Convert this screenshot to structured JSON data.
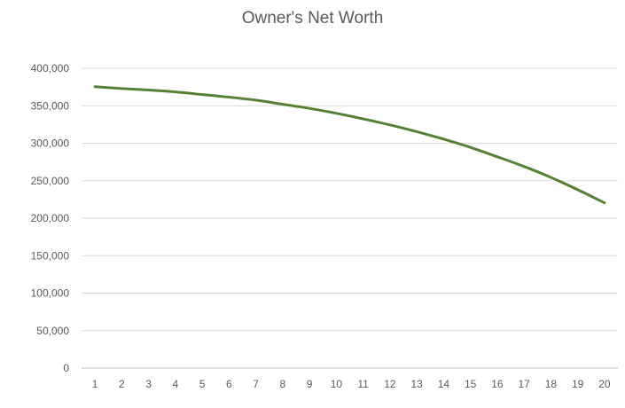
{
  "chart_data": {
    "type": "line",
    "title": "Owner's Net Worth",
    "xlabel": "",
    "ylabel": "",
    "categories": [
      "1",
      "2",
      "3",
      "4",
      "5",
      "6",
      "7",
      "8",
      "9",
      "10",
      "11",
      "12",
      "13",
      "14",
      "15",
      "16",
      "17",
      "18",
      "19",
      "20"
    ],
    "ylim": [
      0,
      400000
    ],
    "yticks": [
      0,
      50000,
      100000,
      150000,
      200000,
      250000,
      300000,
      350000,
      400000
    ],
    "ytick_labels": [
      "0",
      "50,000",
      "100,000",
      "150,000",
      "200,000",
      "250,000",
      "300,000",
      "350,000",
      "400,000"
    ],
    "grid": true,
    "legend": "none",
    "series": [
      {
        "color": "#548235",
        "values": [
          375500,
          373000,
          371000,
          368500,
          365000,
          361500,
          357500,
          352000,
          346500,
          340000,
          332500,
          324500,
          315500,
          305500,
          294500,
          282000,
          269000,
          254500,
          238000,
          220500
        ]
      }
    ]
  }
}
